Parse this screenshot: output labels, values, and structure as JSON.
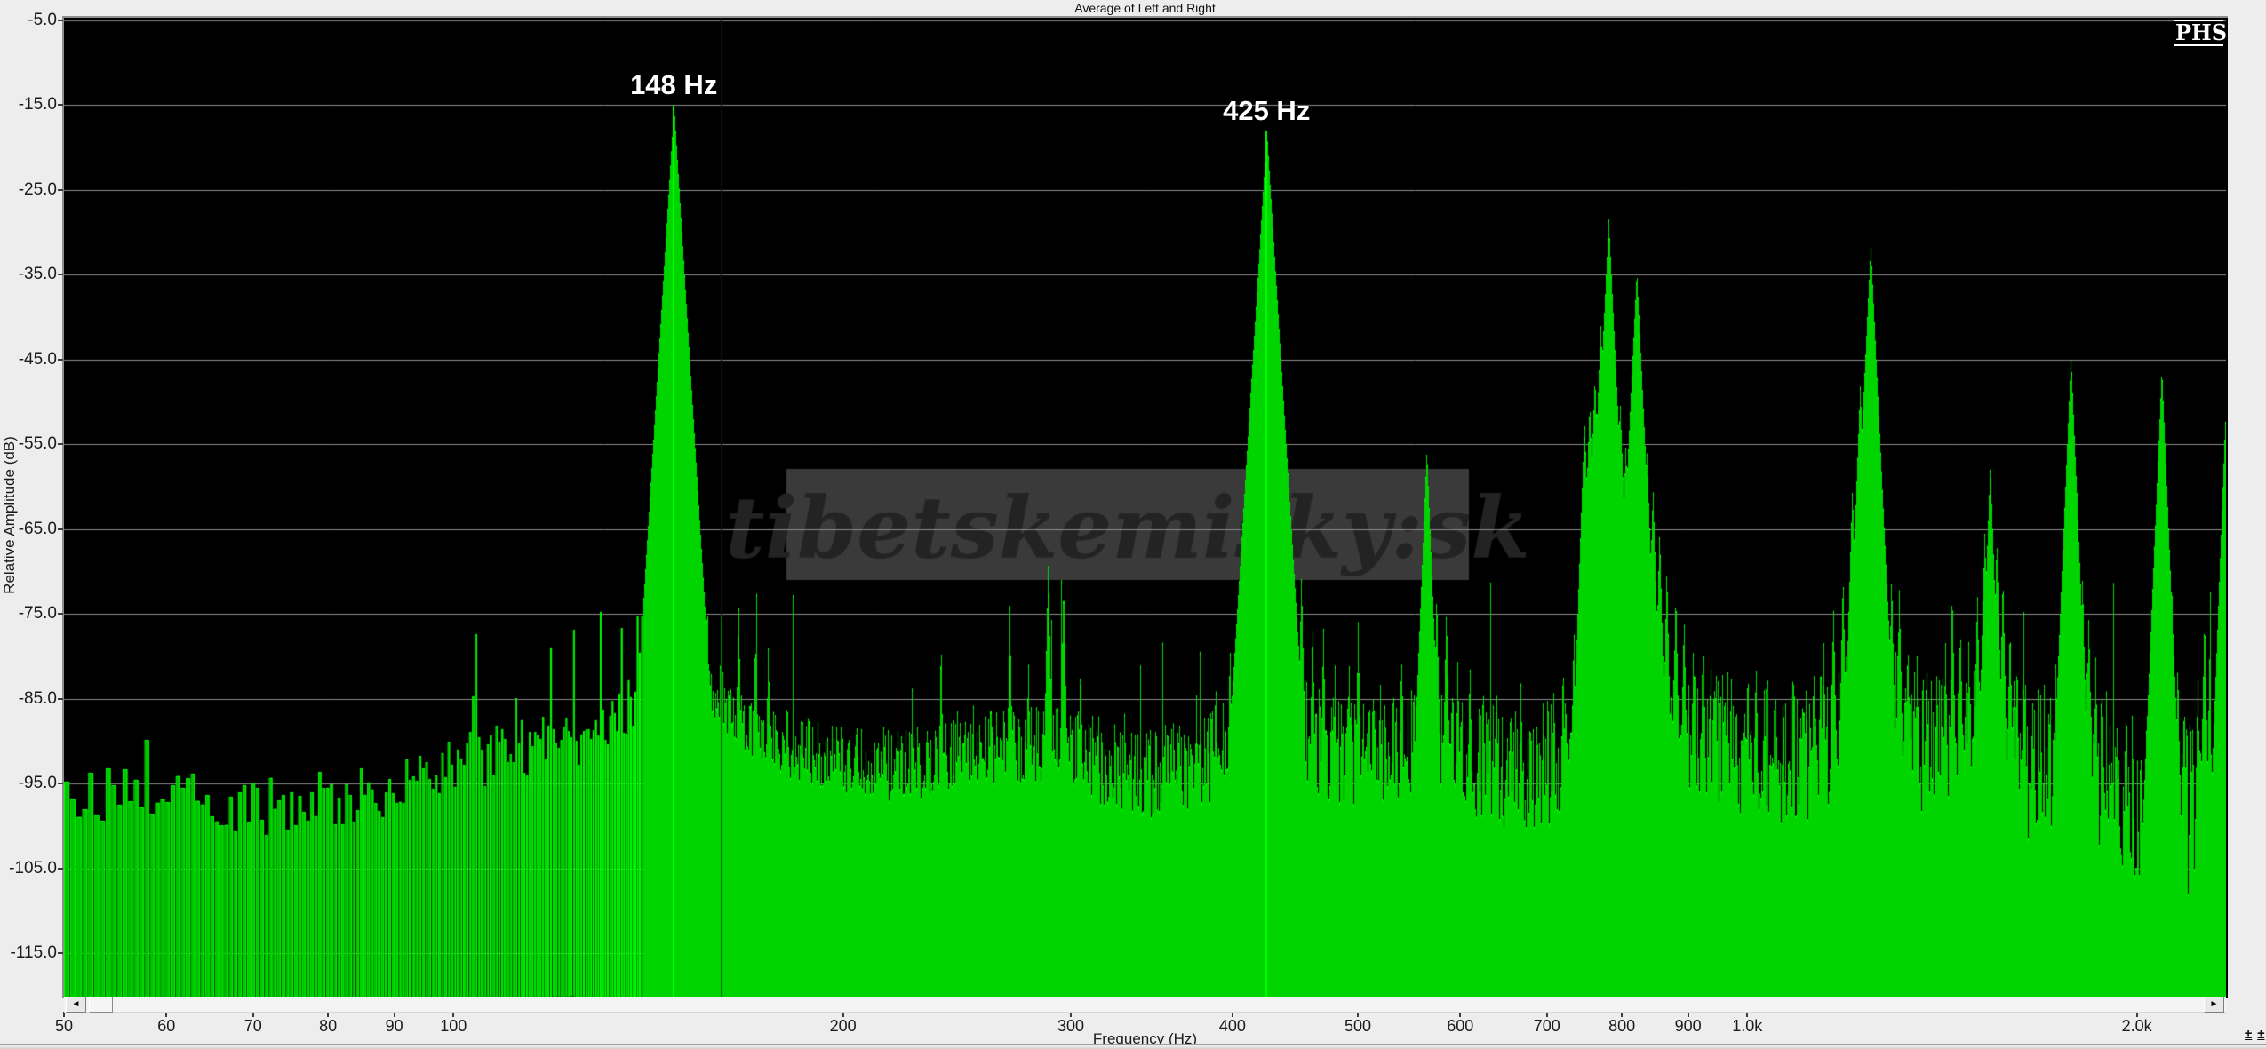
{
  "window": {
    "title": "Average of Left and Right",
    "logo": "PHS"
  },
  "watermark": {
    "text": "tibetskemisky:sk"
  },
  "scrollbar": {
    "left_arrow": "◄",
    "right_arrow": "►"
  },
  "zoom_controls": {
    "plus1": "±",
    "plus2": "±"
  },
  "chart_data": {
    "type": "area",
    "title": "Average of Left and Right",
    "xlabel": "Frequency (Hz)",
    "ylabel": "Relative Amplitude (dB)",
    "x_scale": "log",
    "x_range_hz": [
      50,
      2345
    ],
    "y_range_db": [
      -120,
      -5
    ],
    "grid": true,
    "background": "#000000",
    "grid_color": "#8c8c8c",
    "line_color": "#00ff00",
    "fill_color": "#00cc00",
    "bin_hz": 0.55,
    "y_ticks": [
      {
        "db": -5,
        "label": "-5.0"
      },
      {
        "db": -15,
        "label": "-15.0"
      },
      {
        "db": -25,
        "label": "-25.0"
      },
      {
        "db": -35,
        "label": "-35.0"
      },
      {
        "db": -45,
        "label": "-45.0"
      },
      {
        "db": -55,
        "label": "-55.0"
      },
      {
        "db": -65,
        "label": "-65.0"
      },
      {
        "db": -75,
        "label": "-75.0"
      },
      {
        "db": -85,
        "label": "-85.0"
      },
      {
        "db": -95,
        "label": "-95.0"
      },
      {
        "db": -105,
        "label": "-105.0"
      },
      {
        "db": -115,
        "label": "-115.0"
      }
    ],
    "x_ticks": [
      {
        "f": 50,
        "label": "50"
      },
      {
        "f": 60,
        "label": "60"
      },
      {
        "f": 70,
        "label": "70"
      },
      {
        "f": 80,
        "label": "80"
      },
      {
        "f": 90,
        "label": "90"
      },
      {
        "f": 100,
        "label": "100"
      },
      {
        "f": 200,
        "label": "200"
      },
      {
        "f": 300,
        "label": "300"
      },
      {
        "f": 400,
        "label": "400"
      },
      {
        "f": 500,
        "label": "500"
      },
      {
        "f": 600,
        "label": "600"
      },
      {
        "f": 700,
        "label": "700"
      },
      {
        "f": 800,
        "label": "800"
      },
      {
        "f": 900,
        "label": "900"
      },
      {
        "f": 1000,
        "label": "1.0k"
      },
      {
        "f": 2000,
        "label": "2.0k"
      }
    ],
    "annotations": [
      {
        "f": 148,
        "db": -15,
        "label": "148 Hz"
      },
      {
        "f": 425,
        "db": -18,
        "label": "425 Hz"
      }
    ],
    "cursor_line_hz": 161,
    "peaks": [
      [
        54,
        -83,
        7
      ],
      [
        58,
        -88,
        7
      ],
      [
        62,
        -83,
        7
      ],
      [
        67,
        -90,
        7
      ],
      [
        76,
        -91,
        7
      ],
      [
        83,
        -89,
        7
      ],
      [
        90,
        -90,
        7
      ],
      [
        96,
        -91,
        7
      ],
      [
        104,
        -71,
        6
      ],
      [
        109,
        -85,
        7
      ],
      [
        112,
        -80,
        7
      ],
      [
        116,
        -84,
        7
      ],
      [
        119,
        -78,
        7
      ],
      [
        124,
        -76,
        7
      ],
      [
        127,
        -79,
        7
      ],
      [
        130,
        -74,
        6
      ],
      [
        135,
        -76,
        6
      ],
      [
        139,
        -70.5,
        6
      ],
      [
        144,
        -64,
        5
      ],
      [
        148,
        -15,
        1.7
      ],
      [
        152,
        -64,
        5
      ],
      [
        157,
        -72.5,
        6
      ],
      [
        161,
        -72.5,
        6
      ],
      [
        166,
        -73,
        6
      ],
      [
        171,
        -77,
        6
      ],
      [
        175,
        -78,
        6
      ],
      [
        181,
        -83,
        7
      ],
      [
        188,
        -84,
        7
      ],
      [
        196,
        -87,
        7
      ],
      [
        205,
        -87,
        7
      ],
      [
        215,
        -86,
        7
      ],
      [
        226,
        -83,
        7
      ],
      [
        238,
        -77,
        7
      ],
      [
        245,
        -86,
        7
      ],
      [
        252,
        -84,
        7
      ],
      [
        260,
        -83,
        7
      ],
      [
        269,
        -74,
        6
      ],
      [
        278,
        -80,
        6
      ],
      [
        288,
        -68.5,
        5
      ],
      [
        296,
        -71,
        5
      ],
      [
        305,
        -80,
        6
      ],
      [
        315,
        -86,
        7
      ],
      [
        330,
        -85,
        7
      ],
      [
        345,
        -88,
        7
      ],
      [
        360,
        -86,
        7
      ],
      [
        375,
        -84,
        7
      ],
      [
        388,
        -82,
        6
      ],
      [
        398,
        -78,
        6
      ],
      [
        406,
        -72,
        5
      ],
      [
        412,
        -66,
        4
      ],
      [
        418,
        -58,
        3
      ],
      [
        425,
        -18,
        1.7
      ],
      [
        431,
        -60,
        3
      ],
      [
        437,
        -66,
        4
      ],
      [
        444,
        -70,
        5
      ],
      [
        452,
        -70,
        5
      ],
      [
        461,
        -75,
        6
      ],
      [
        470,
        -76,
        6
      ],
      [
        480,
        -80,
        6
      ],
      [
        492,
        -80,
        6
      ],
      [
        500,
        -76,
        6
      ],
      [
        510,
        -83,
        7
      ],
      [
        520,
        -82,
        7
      ],
      [
        532,
        -84,
        7
      ],
      [
        540,
        -79,
        6
      ],
      [
        552,
        -82,
        6
      ],
      [
        565,
        -55.5,
        2.6
      ],
      [
        575,
        -72,
        5
      ],
      [
        585,
        -74,
        5
      ],
      [
        597,
        -80,
        6
      ],
      [
        610,
        -80,
        6
      ],
      [
        625,
        -84,
        7
      ],
      [
        640,
        -84,
        7
      ],
      [
        655,
        -86,
        7
      ],
      [
        668,
        -82,
        7
      ],
      [
        680,
        -86,
        7
      ],
      [
        695,
        -84,
        7
      ],
      [
        708,
        -84,
        7
      ],
      [
        720,
        -80,
        6
      ],
      [
        734,
        -76,
        6
      ],
      [
        748,
        -52,
        3
      ],
      [
        755,
        -50,
        3
      ],
      [
        762,
        -47,
        2.8
      ],
      [
        770,
        -41,
        2.6
      ],
      [
        781,
        -28.5,
        2.2
      ],
      [
        790,
        -45,
        2.6
      ],
      [
        797,
        -50,
        2.8
      ],
      [
        805,
        -55,
        3
      ],
      [
        812,
        -57,
        3
      ],
      [
        821,
        -34.5,
        2.2
      ],
      [
        828,
        -52,
        3
      ],
      [
        836,
        -56,
        3
      ],
      [
        845,
        -60,
        3.5
      ],
      [
        855,
        -65,
        4
      ],
      [
        866,
        -69,
        5
      ],
      [
        880,
        -72,
        5
      ],
      [
        893,
        -75,
        5
      ],
      [
        908,
        -78,
        6
      ],
      [
        925,
        -80,
        6
      ],
      [
        942,
        -82,
        6
      ],
      [
        960,
        -83,
        6
      ],
      [
        980,
        -84,
        6
      ],
      [
        1000,
        -82,
        6
      ],
      [
        1015,
        -80,
        6
      ],
      [
        1030,
        -84,
        6
      ],
      [
        1048,
        -86,
        7
      ],
      [
        1065,
        -85,
        7
      ],
      [
        1085,
        -86,
        7
      ],
      [
        1105,
        -84,
        6
      ],
      [
        1125,
        -81,
        6
      ],
      [
        1145,
        -78,
        6
      ],
      [
        1165,
        -74,
        5
      ],
      [
        1185,
        -70,
        5
      ],
      [
        1205,
        -60,
        3.5
      ],
      [
        1222,
        -48,
        2.8
      ],
      [
        1245,
        -31.5,
        2.2
      ],
      [
        1260,
        -52,
        3
      ],
      [
        1276,
        -66,
        4
      ],
      [
        1292,
        -70,
        5
      ],
      [
        1310,
        -72,
        5
      ],
      [
        1330,
        -78,
        5
      ],
      [
        1352,
        -80,
        6
      ],
      [
        1375,
        -80,
        6
      ],
      [
        1400,
        -82,
        6
      ],
      [
        1422,
        -78,
        6
      ],
      [
        1440,
        -74,
        5
      ],
      [
        1460,
        -76,
        5
      ],
      [
        1482,
        -78,
        6
      ],
      [
        1505,
        -72,
        5
      ],
      [
        1525,
        -65,
        4
      ],
      [
        1540,
        -57,
        3
      ],
      [
        1558,
        -66,
        4
      ],
      [
        1575,
        -70,
        5
      ],
      [
        1595,
        -76,
        5
      ],
      [
        1615,
        -80,
        6
      ],
      [
        1638,
        -83,
        6
      ],
      [
        1660,
        -84,
        7
      ],
      [
        1685,
        -86,
        7
      ],
      [
        1710,
        -86,
        7
      ],
      [
        1735,
        -84,
        7
      ],
      [
        1758,
        -72,
        5
      ],
      [
        1778,
        -44.5,
        2.5
      ],
      [
        1795,
        -58,
        3.5
      ],
      [
        1815,
        -70,
        5
      ],
      [
        1835,
        -75,
        5
      ],
      [
        1858,
        -80,
        6
      ],
      [
        1880,
        -84,
        6
      ],
      [
        1905,
        -87,
        7
      ],
      [
        1930,
        -88,
        7
      ],
      [
        1958,
        -90,
        7
      ],
      [
        1985,
        -91,
        7
      ],
      [
        2015,
        -90,
        7
      ],
      [
        2045,
        -84,
        6
      ],
      [
        2068,
        -70,
        4
      ],
      [
        2090,
        -46,
        2.5
      ],
      [
        2108,
        -62,
        3.5
      ],
      [
        2128,
        -72,
        5
      ],
      [
        2150,
        -80,
        6
      ],
      [
        2175,
        -85,
        6
      ],
      [
        2200,
        -88,
        7
      ],
      [
        2228,
        -82,
        6
      ],
      [
        2255,
        -75,
        5
      ],
      [
        2275,
        -80,
        6
      ],
      [
        2300,
        -84,
        6
      ],
      [
        2320,
        -70,
        5
      ],
      [
        2340,
        -52,
        2.8
      ]
    ],
    "noise_floor": [
      [
        50,
        -97
      ],
      [
        60,
        -96
      ],
      [
        70,
        -98
      ],
      [
        80,
        -97
      ],
      [
        90,
        -96
      ],
      [
        100,
        -93
      ],
      [
        110,
        -91
      ],
      [
        120,
        -90
      ],
      [
        130,
        -89
      ],
      [
        140,
        -84
      ],
      [
        148,
        -78
      ],
      [
        158,
        -85
      ],
      [
        170,
        -89
      ],
      [
        185,
        -91
      ],
      [
        200,
        -92
      ],
      [
        220,
        -93
      ],
      [
        240,
        -92
      ],
      [
        260,
        -91
      ],
      [
        280,
        -90
      ],
      [
        300,
        -91
      ],
      [
        320,
        -93
      ],
      [
        340,
        -94
      ],
      [
        365,
        -93
      ],
      [
        385,
        -92
      ],
      [
        400,
        -90
      ],
      [
        415,
        -87
      ],
      [
        425,
        -84
      ],
      [
        438,
        -87
      ],
      [
        455,
        -89
      ],
      [
        475,
        -91
      ],
      [
        500,
        -92
      ],
      [
        530,
        -91
      ],
      [
        560,
        -89
      ],
      [
        600,
        -92
      ],
      [
        640,
        -93
      ],
      [
        680,
        -93
      ],
      [
        720,
        -92
      ],
      [
        750,
        -89
      ],
      [
        780,
        -83
      ],
      [
        800,
        -82
      ],
      [
        822,
        -83
      ],
      [
        850,
        -86
      ],
      [
        880,
        -88
      ],
      [
        915,
        -89
      ],
      [
        950,
        -90
      ],
      [
        1000,
        -90
      ],
      [
        1050,
        -91
      ],
      [
        1100,
        -91
      ],
      [
        1150,
        -89
      ],
      [
        1200,
        -86
      ],
      [
        1250,
        -86
      ],
      [
        1300,
        -88
      ],
      [
        1350,
        -90
      ],
      [
        1400,
        -91
      ],
      [
        1450,
        -90
      ],
      [
        1500,
        -89
      ],
      [
        1550,
        -90
      ],
      [
        1600,
        -91
      ],
      [
        1650,
        -93
      ],
      [
        1700,
        -93
      ],
      [
        1750,
        -89
      ],
      [
        1800,
        -88
      ],
      [
        1850,
        -92
      ],
      [
        1900,
        -94
      ],
      [
        1950,
        -96
      ],
      [
        2000,
        -97
      ],
      [
        2050,
        -95
      ],
      [
        2090,
        -91
      ],
      [
        2130,
        -95
      ],
      [
        2180,
        -98
      ],
      [
        2230,
        -96
      ],
      [
        2280,
        -99
      ],
      [
        2345,
        -94
      ]
    ]
  }
}
